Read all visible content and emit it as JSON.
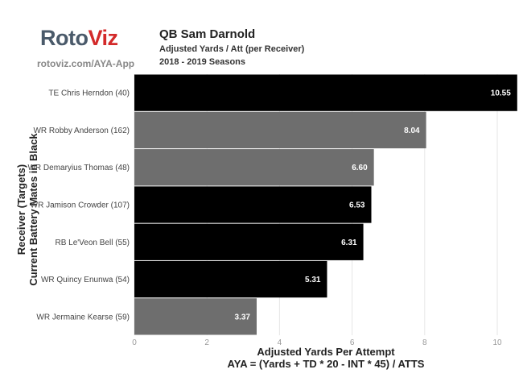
{
  "logo": {
    "text_a": "Roto",
    "text_b": "Viz"
  },
  "site": "rotoviz.com/AYA-App",
  "chart_data": {
    "type": "bar",
    "orientation": "horizontal",
    "title": "QB Sam Darnold",
    "subtitle": "Adjusted Yards / Att (per Receiver)",
    "subtitle2": "2018 - 2019 Seasons",
    "xlabel": "Adjusted Yards Per Attempt",
    "xlabel2": "AYA = (Yards + TD * 20 - INT * 45) / ATTS",
    "ylabel": "Receiver (Targets)",
    "ylabel2": "Current Battery Mates in Black",
    "xlim": [
      0,
      10.7
    ],
    "xticks": [
      0,
      2,
      4,
      6,
      8,
      10
    ],
    "grid": true,
    "categories": [
      "TE Chris Herndon (40)",
      "WR Robby Anderson (162)",
      "WR Demaryius Thomas (48)",
      "WR Jamison Crowder (107)",
      "RB Le'Veon Bell (55)",
      "WR Quincy Enunwa (54)",
      "WR Jermaine Kearse (59)"
    ],
    "values": [
      10.55,
      8.04,
      6.6,
      6.53,
      6.31,
      5.31,
      3.37
    ],
    "labels": [
      "10.55",
      "8.04",
      "6.60",
      "6.53",
      "6.31",
      "5.31",
      "3.37"
    ],
    "current": [
      true,
      false,
      false,
      true,
      true,
      true,
      false
    ],
    "colors": {
      "current": "#000000",
      "former": "#6e6e6e"
    }
  }
}
